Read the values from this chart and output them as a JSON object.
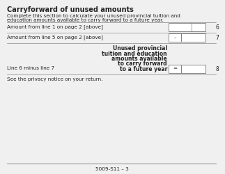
{
  "title": "Carryforward of unused amounts",
  "subtitle_line1": "Complete this section to calculate your unused provincial tuition and",
  "subtitle_line2": "education amounts available to carry forward to a future year.",
  "row1_label": "Amount from line 1 on page 2 [above]",
  "row1_num": "6",
  "row2_label": "Amount from line 5 on page 2 [above]",
  "row2_symbol": "–",
  "row2_num": "7",
  "row3_label_left": "Line 6 minus line 7",
  "row3_label_right_lines": [
    "Unused provincial",
    "tuition and education",
    "amounts available",
    "to carry forward",
    "to a future year"
  ],
  "row3_symbol": "=",
  "row3_num": "8",
  "footer_text": "See the privacy notice on your return.",
  "page_id": "5009-S11 – 3",
  "bg_color": "#f0f0f0",
  "box_color": "#ffffff",
  "border_color": "#777777",
  "line_color": "#888888",
  "text_color": "#222222",
  "title_fontsize": 7.0,
  "body_fontsize": 5.2,
  "bold_fontsize": 5.5,
  "num_fontsize": 5.5
}
